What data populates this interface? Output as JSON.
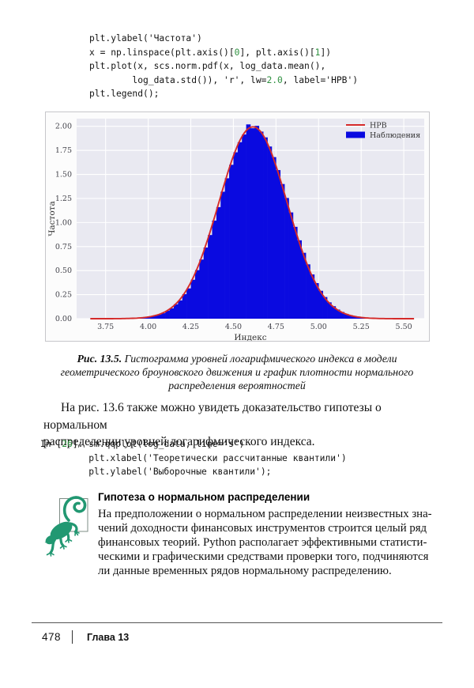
{
  "code1": {
    "lines": [
      [
        {
          "t": "plt.ylabel('Частота')",
          "k": "p"
        }
      ],
      [
        {
          "t": "x = np.linspace(plt.axis()[",
          "k": "p"
        },
        {
          "t": "0",
          "k": "n"
        },
        {
          "t": "], plt.axis()[",
          "k": "p"
        },
        {
          "t": "1",
          "k": "n"
        },
        {
          "t": "])",
          "k": "p"
        }
      ],
      [
        {
          "t": "plt.plot(x, scs.norm.pdf(x, log_data.mean(),",
          "k": "p"
        }
      ],
      [
        {
          "t": "        log_data.std()), 'r', lw=",
          "k": "p"
        },
        {
          "t": "2.0",
          "k": "n"
        },
        {
          "t": ", label='HPB')",
          "k": "p"
        }
      ],
      [
        {
          "t": "plt.legend();",
          "k": "p"
        }
      ]
    ]
  },
  "code2": {
    "lines": [
      [
        {
          "t": "In [",
          "k": "p"
        },
        {
          "t": "26",
          "k": "n"
        },
        {
          "t": "]: ",
          "k": "p"
        },
        {
          "t": "sm.qqplot(log_data, line='s')",
          "k": "p"
        }
      ],
      [
        {
          "t": "         plt.xlabel('Теоретически рассчитанные квантили')",
          "k": "p"
        }
      ],
      [
        {
          "t": "         plt.ylabel('Выборочные квантили');",
          "k": "p"
        }
      ]
    ]
  },
  "caption": {
    "lead": "Рис. 13.5.",
    "line1_rest": " Гистограмма уровней логарифмического индекса в модели",
    "line2": "геометрического броуновского движения и график плотности нормального",
    "line3": "распределения вероятностей"
  },
  "paragraph": {
    "line1": "На рис. 13.6 также можно увидеть доказательство гипотезы о нормальном",
    "line2": "распределении уровней логарифмического индекса."
  },
  "note": {
    "title": "Гипотеза о нормальном распределении",
    "lines": [
      "На предположении о нормальном распределении неизвестных зна-",
      "чений доходности финансовых инструментов строится целый ряд",
      "финансовых теорий. Python располагает эффективными статисти-",
      "ческими и графическими средствами проверки того, подчиняются",
      "ли данные временных рядов нормальному распределению."
    ],
    "icon": "lizard-icon",
    "icon_color": "#229872"
  },
  "footer": {
    "page_number": "478",
    "chapter": "Глава 13"
  },
  "chart_data": {
    "type": "bar",
    "subtype": "histogram_with_density_curve",
    "title": "",
    "xlabel": "Индекс",
    "ylabel": "Частота",
    "xlim": [
      3.58,
      5.62
    ],
    "ylim": [
      0,
      2.08
    ],
    "grid": true,
    "plot_bg": "#e9e9f1",
    "grid_color": "#ffffff",
    "bar_color": "#0a0ae0",
    "line_color": "#d42a2a",
    "xticks": [
      "3.75",
      "4.00",
      "4.25",
      "4.50",
      "4.75",
      "5.00",
      "5.25",
      "5.50"
    ],
    "yticks": [
      "0.00",
      "0.25",
      "0.50",
      "0.75",
      "1.00",
      "1.25",
      "1.50",
      "1.75",
      "2.00"
    ],
    "legend": {
      "position": "upper right",
      "entries": [
        {
          "label": "HPB",
          "type": "line",
          "color": "#d42a2a"
        },
        {
          "label": "Наблюдения",
          "type": "patch",
          "color": "#0a0ae0"
        }
      ]
    },
    "histogram": {
      "bin_start": 3.95,
      "bin_width": 0.025,
      "heights": [
        0.01,
        0.013,
        0.02,
        0.03,
        0.042,
        0.057,
        0.082,
        0.108,
        0.15,
        0.19,
        0.255,
        0.315,
        0.405,
        0.505,
        0.615,
        0.74,
        0.87,
        1.02,
        1.16,
        1.32,
        1.46,
        1.6,
        1.73,
        1.835,
        1.915,
        2.02,
        1.98,
        2.005,
        1.945,
        1.885,
        1.79,
        1.68,
        1.545,
        1.4,
        1.255,
        1.105,
        0.955,
        0.815,
        0.685,
        0.565,
        0.46,
        0.37,
        0.29,
        0.225,
        0.17,
        0.13,
        0.095,
        0.07,
        0.05,
        0.036,
        0.025,
        0.017,
        0.011,
        0.008,
        0.005,
        0.004,
        0.003
      ]
    },
    "curve": {
      "type": "normal_pdf",
      "mean": 4.615,
      "std": 0.2,
      "peak": 1.995,
      "x_range": [
        3.66,
        5.56
      ]
    }
  }
}
